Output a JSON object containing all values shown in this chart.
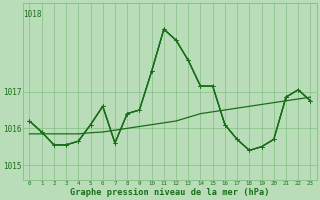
{
  "background_color": "#b8ddb8",
  "grid_color": "#7ab87a",
  "line_color": "#1a6e1a",
  "title": "Graphe pression niveau de la mer (hPa)",
  "xlim": [
    -0.5,
    23.5
  ],
  "ylim": [
    1014.6,
    1019.4
  ],
  "yticks": [
    1015,
    1016,
    1017
  ],
  "ytop_label": "1018",
  "xtick_labels": [
    "0",
    "1",
    "2",
    "3",
    "4",
    "5",
    "6",
    "7",
    "8",
    "9",
    "10",
    "11",
    "12",
    "13",
    "14",
    "15",
    "16",
    "17",
    "18",
    "19",
    "20",
    "21",
    "22",
    "23"
  ],
  "series": [
    {
      "y": [
        1016.2,
        1015.9,
        1015.55,
        1015.55,
        1015.65,
        1016.1,
        1016.6,
        1015.6,
        1016.4,
        1016.5,
        1017.55,
        1018.7,
        1018.4,
        1017.85,
        1017.15,
        1017.15,
        1016.1,
        1015.7,
        1015.4,
        1015.5,
        1015.7,
        1016.85,
        1017.05,
        1016.75
      ],
      "marker": true,
      "linewidth": 0.9
    },
    {
      "y": [
        1016.2,
        1015.9,
        1015.55,
        1015.55,
        1015.65,
        1016.1,
        1016.6,
        1015.6,
        1016.4,
        1016.5,
        1017.55,
        1018.7,
        1018.4,
        1017.85,
        1017.15,
        1017.15,
        1016.1,
        1015.7,
        1015.4,
        1015.5,
        1015.7,
        1016.85,
        1017.05,
        1016.75
      ],
      "marker": true,
      "linewidth": 0.9
    },
    {
      "y": [
        1016.2,
        1015.9,
        1015.55,
        1015.55,
        1015.65,
        1016.1,
        1016.6,
        1015.6,
        1016.4,
        1016.5,
        1017.55,
        1018.7,
        1018.4,
        1017.85,
        1017.15,
        1017.15,
        1016.1,
        1015.7,
        1015.4,
        1015.5,
        1015.7,
        1016.85,
        1017.05,
        1016.75
      ],
      "marker": true,
      "linewidth": 0.9
    },
    {
      "y": [
        1015.85,
        1015.85,
        1015.85,
        1015.85,
        1015.85,
        1015.88,
        1015.9,
        1015.95,
        1016.0,
        1016.05,
        1016.1,
        1016.15,
        1016.2,
        1016.3,
        1016.4,
        1016.45,
        1016.5,
        1016.55,
        1016.6,
        1016.65,
        1016.7,
        1016.75,
        1016.8,
        1016.85
      ],
      "marker": false,
      "linewidth": 0.9
    }
  ]
}
